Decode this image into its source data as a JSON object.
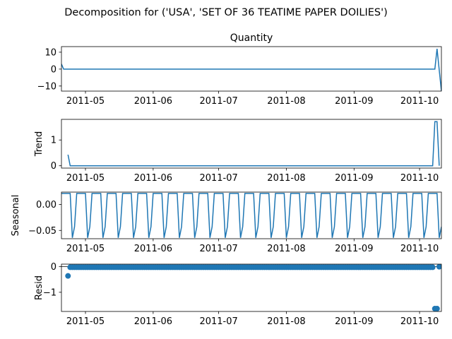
{
  "figure": {
    "suptitle": "Decomposition for ('USA', 'SET OF 36 TEATIME PAPER DOILIES')",
    "line_color": "#1f77b4"
  },
  "chart_data": [
    {
      "type": "line",
      "title": "Quantity",
      "ylabel": "",
      "x_start": "2011-04-20",
      "x_end": "2011-10-11",
      "x_axis": {
        "start": "2011-04-20",
        "end": "2011-10-11",
        "ticks": [
          "2011-05",
          "2011-06",
          "2011-07",
          "2011-08",
          "2011-09",
          "2011-10"
        ]
      },
      "ylim": [
        -13,
        13.3
      ],
      "yticks": [
        -10,
        0,
        10
      ],
      "points": [
        [
          "2011-04-20",
          3
        ],
        [
          "2011-04-21",
          0
        ],
        [
          "2011-10-08",
          0
        ],
        [
          "2011-10-09",
          12
        ],
        [
          "2011-10-11",
          -13
        ]
      ]
    },
    {
      "type": "line",
      "title": "",
      "ylabel": "Trend",
      "x_axis": {
        "start": "2011-04-20",
        "end": "2011-10-11",
        "ticks": [
          "2011-05",
          "2011-06",
          "2011-07",
          "2011-08",
          "2011-09",
          "2011-10"
        ]
      },
      "ylim": [
        -0.09,
        1.8
      ],
      "yticks": [
        0,
        1
      ],
      "points": [
        [
          "2011-04-23",
          0.43
        ],
        [
          "2011-04-24",
          0
        ],
        [
          "2011-10-07",
          0
        ],
        [
          "2011-10-08",
          1.71
        ],
        [
          "2011-10-09",
          1.71
        ],
        [
          "2011-10-10",
          0
        ]
      ]
    },
    {
      "type": "line",
      "title": "",
      "ylabel": "Seasonal",
      "x_axis": {
        "start": "2011-04-20",
        "end": "2011-10-11",
        "ticks": [
          "2011-05",
          "2011-06",
          "2011-07",
          "2011-08",
          "2011-09",
          "2011-10"
        ]
      },
      "ylim": [
        -0.066,
        0.024
      ],
      "yticks": [
        -0.05,
        0.0
      ],
      "ytick_labels": [
        "−0.05",
        "0.00"
      ],
      "seasonal_pattern": [
        0.0214,
        0.0214,
        0.0214,
        0.0214,
        0.0214,
        -0.0643,
        -0.0429
      ],
      "seasonal_start": "2011-04-20"
    },
    {
      "type": "scatter",
      "title": "",
      "ylabel": "Resid",
      "x_axis": {
        "start": "2011-04-20",
        "end": "2011-10-11",
        "ticks": [
          "2011-05",
          "2011-06",
          "2011-07",
          "2011-08",
          "2011-09",
          "2011-10"
        ]
      },
      "ylim": [
        -1.75,
        0.1
      ],
      "yticks": [
        -1,
        0
      ],
      "ytick_labels": [
        "−1",
        "0"
      ],
      "resid_start": "2011-04-23",
      "resid_end": "2011-10-10",
      "resid_default": -0.0214,
      "resid_overrides": [
        [
          "2011-04-23",
          -0.36
        ],
        [
          "2011-10-08",
          -1.64
        ],
        [
          "2011-10-09",
          -1.64
        ],
        [
          "2011-10-10",
          0.0
        ]
      ]
    }
  ]
}
